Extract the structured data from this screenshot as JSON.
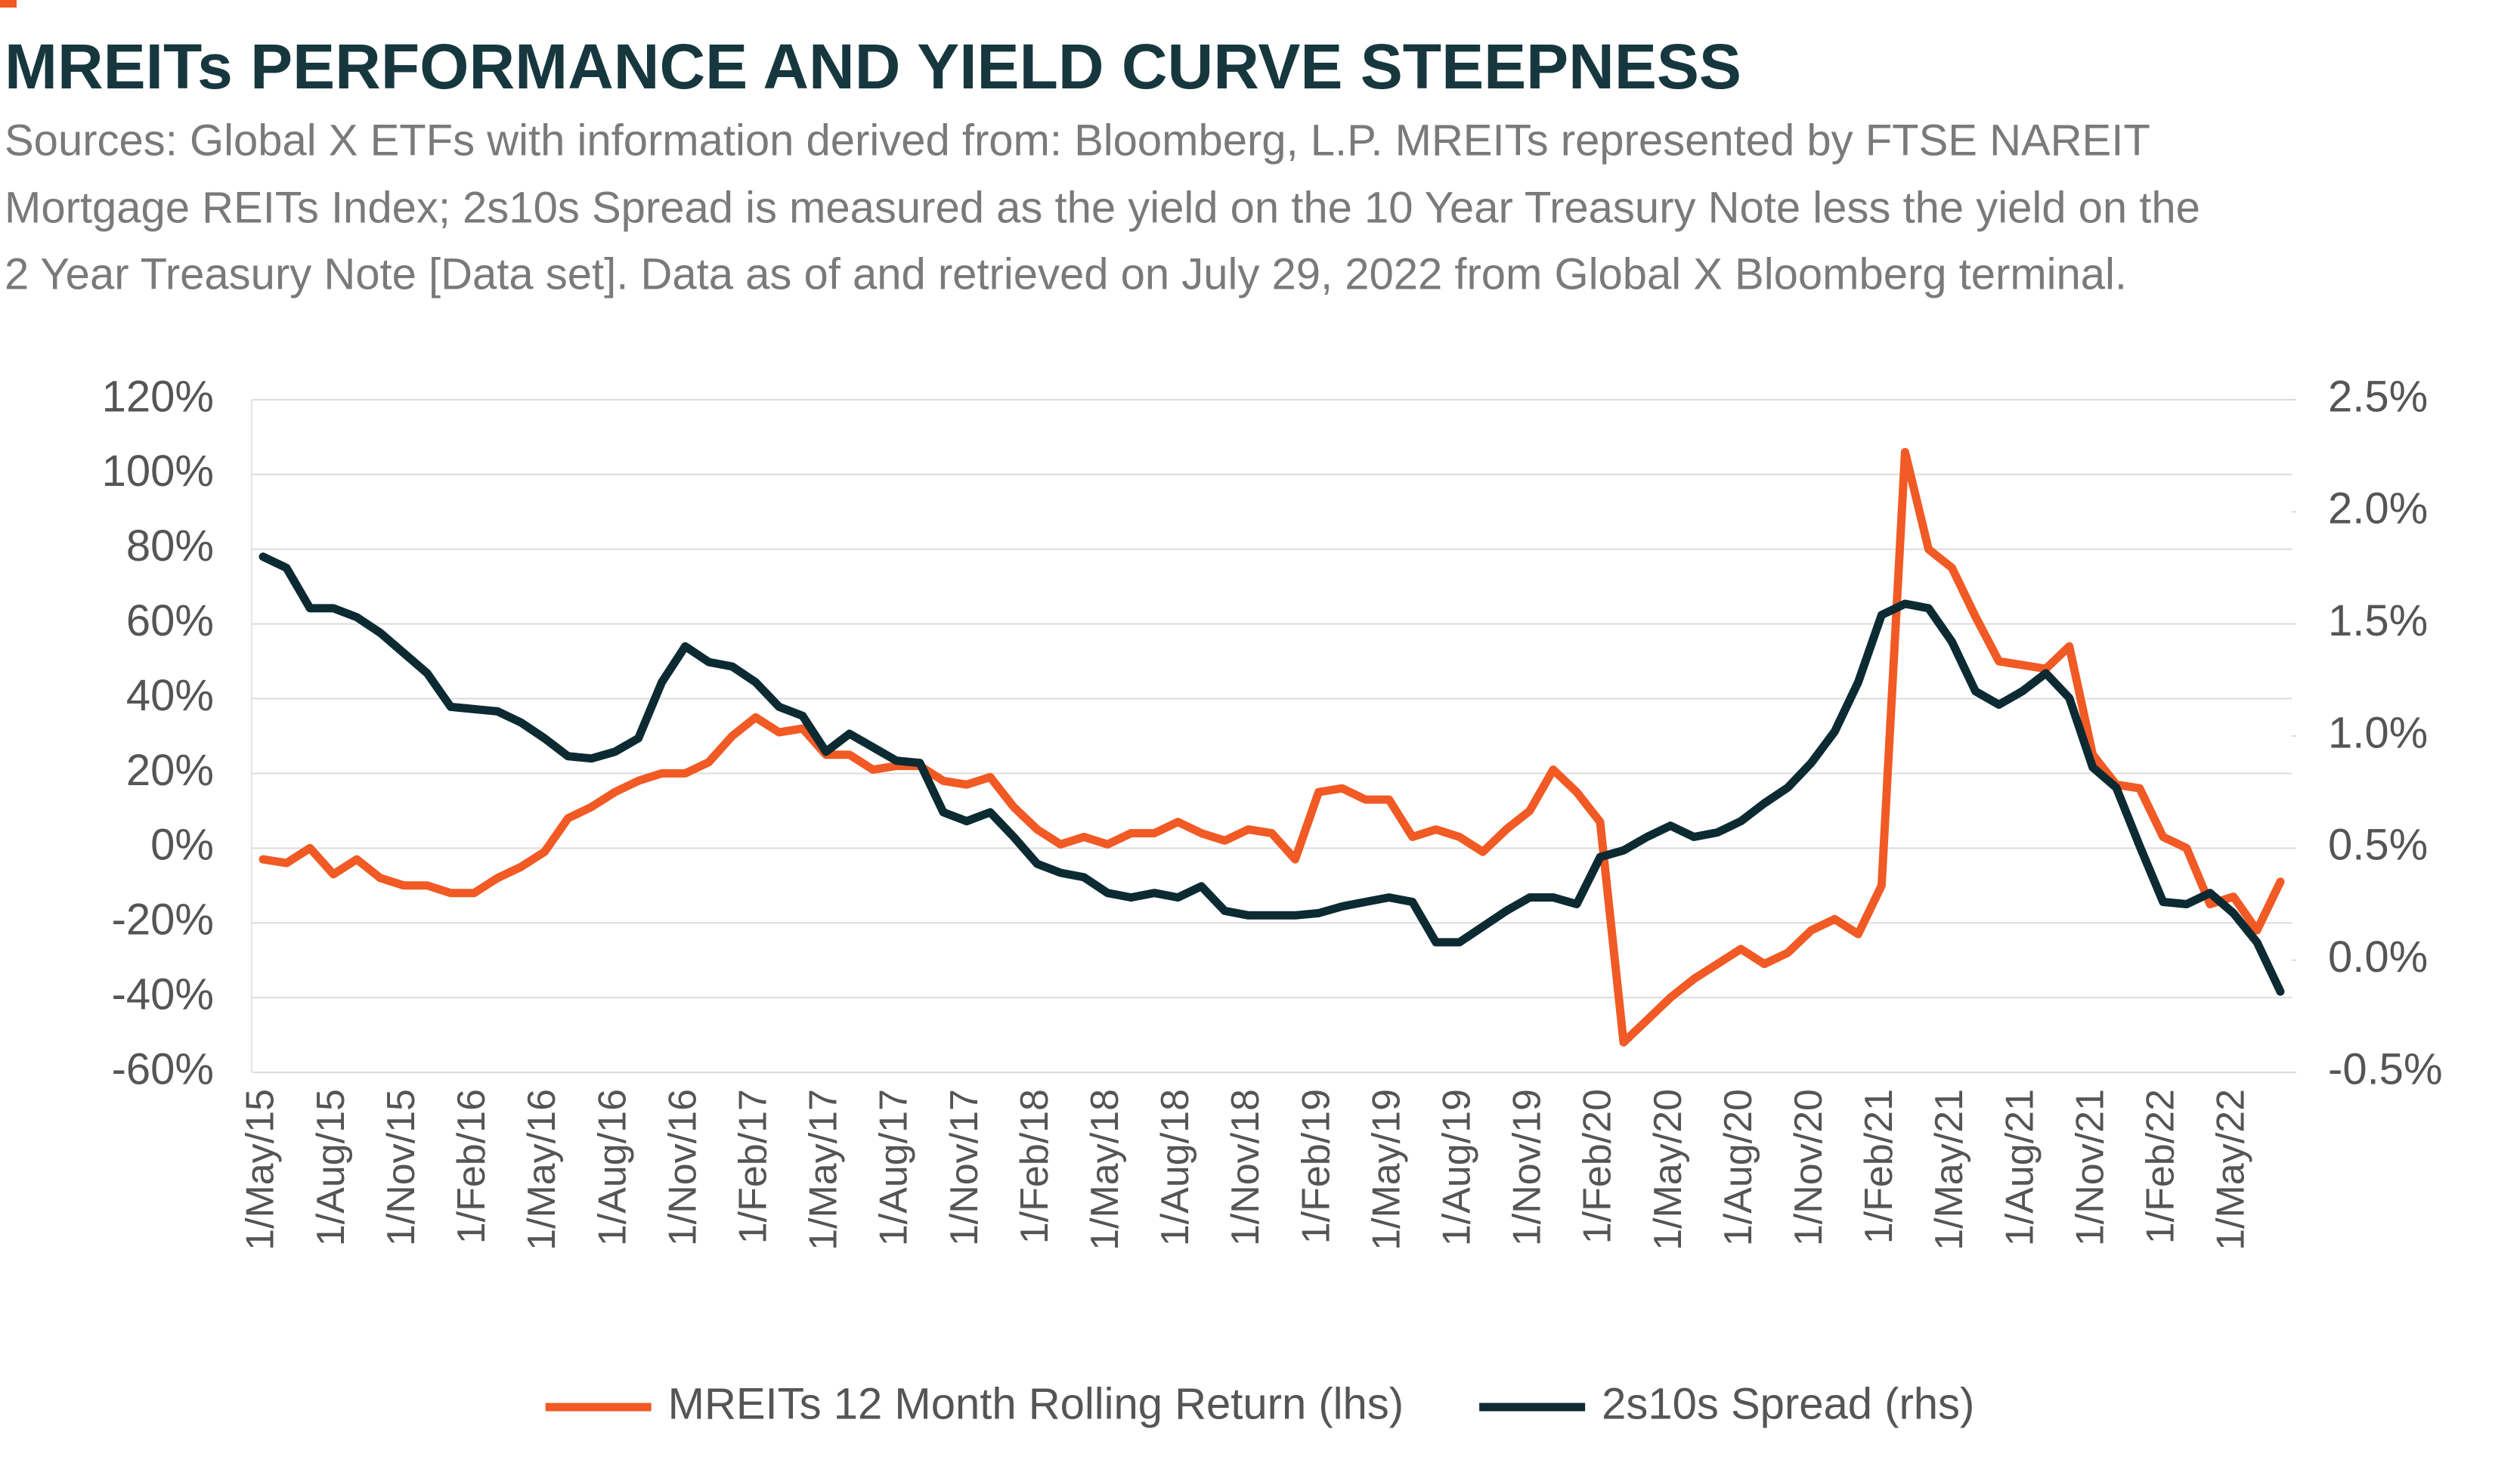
{
  "chart_data": {
    "type": "line",
    "title": "MREITs PERFORMANCE AND YIELD CURVE STEEPNESS",
    "subtitle_lines": [
      "Sources: Global X ETFs with information derived from: Bloomberg, L.P. MREITs represented by FTSE NAREIT",
      "Mortgage REITs Index; 2s10s Spread is measured as the yield on the 10 Year Treasury Note less the yield on the",
      "2 Year Treasury Note [Data set]. Data as of and retrieved on July 29, 2022 from Global X Bloomberg terminal."
    ],
    "categories": [
      "1/May/15",
      null,
      null,
      "1/Aug/15",
      null,
      null,
      "1/Nov/15",
      null,
      null,
      "1/Feb/16",
      null,
      null,
      "1/May/16",
      null,
      null,
      "1/Aug/16",
      null,
      null,
      "1/Nov/16",
      null,
      null,
      "1/Feb/17",
      null,
      null,
      "1/May/17",
      null,
      null,
      "1/Aug/17",
      null,
      null,
      "1/Nov/17",
      null,
      null,
      "1/Feb/18",
      null,
      null,
      "1/May/18",
      null,
      null,
      "1/Aug/18",
      null,
      null,
      "1/Nov/18",
      null,
      null,
      "1/Feb/19",
      null,
      null,
      "1/May/19",
      null,
      null,
      "1/Aug/19",
      null,
      null,
      "1/Nov/19",
      null,
      null,
      "1/Feb/20",
      null,
      null,
      "1/May/20",
      null,
      null,
      "1/Aug/20",
      null,
      null,
      "1/Nov/20",
      null,
      null,
      "1/Feb/21",
      null,
      null,
      "1/May/21",
      null,
      null,
      "1/Aug/21",
      null,
      null,
      "1/Nov/21",
      null,
      null,
      "1/Feb/22",
      null,
      null,
      "1/May/22",
      null,
      null
    ],
    "series": [
      {
        "name": "MREITs 12 Month Rolling Return (lhs)",
        "color": "#f15a24",
        "axis": "y",
        "values": [
          -3,
          -4,
          0,
          -7,
          -3,
          -8,
          -10,
          -10,
          -12,
          -12,
          -8,
          -5,
          -1,
          8,
          11,
          15,
          18,
          20,
          20,
          23,
          30,
          35,
          31,
          32,
          25,
          25,
          21,
          22,
          22,
          18,
          17,
          19,
          11,
          5,
          1,
          3,
          1,
          4,
          4,
          7,
          4,
          2,
          5,
          4,
          -3,
          15,
          16,
          13,
          13,
          3,
          5,
          3,
          -1,
          5,
          10,
          21,
          15,
          7,
          -52,
          -46,
          -40,
          -35,
          -31,
          -27,
          -31,
          -28,
          -22,
          -19,
          -23,
          -10,
          106,
          80,
          75,
          62,
          50,
          49,
          48,
          54,
          25,
          17,
          16,
          3,
          0,
          -15,
          -13,
          -22,
          -9
        ]
      },
      {
        "name": "2s10s Spread (rhs)",
        "color": "#0c2a32",
        "axis": "y2",
        "values": [
          1.8,
          1.75,
          1.57,
          1.57,
          1.53,
          1.46,
          1.37,
          1.28,
          1.13,
          1.12,
          1.11,
          1.06,
          0.99,
          0.91,
          0.9,
          0.93,
          0.99,
          1.24,
          1.4,
          1.33,
          1.31,
          1.24,
          1.13,
          1.09,
          0.93,
          1.01,
          0.95,
          0.89,
          0.88,
          0.66,
          0.62,
          0.66,
          0.55,
          0.43,
          0.39,
          0.37,
          0.3,
          0.28,
          0.3,
          0.28,
          0.33,
          0.22,
          0.2,
          0.2,
          0.2,
          0.21,
          0.24,
          0.26,
          0.28,
          0.26,
          0.08,
          0.08,
          0.15,
          0.22,
          0.28,
          0.28,
          0.25,
          0.46,
          0.49,
          0.55,
          0.6,
          0.55,
          0.57,
          0.62,
          0.7,
          0.77,
          0.88,
          1.02,
          1.24,
          1.54,
          1.59,
          1.57,
          1.42,
          1.2,
          1.14,
          1.2,
          1.28,
          1.17,
          0.86,
          0.77,
          0.51,
          0.26,
          0.25,
          0.3,
          0.21,
          0.08,
          -0.14
        ]
      }
    ],
    "ylim": [
      -60,
      120
    ],
    "yticks": [
      {
        "value": -60,
        "label": "-60%"
      },
      {
        "value": -40,
        "label": "-40%"
      },
      {
        "value": -20,
        "label": "-20%"
      },
      {
        "value": 0,
        "label": "0%"
      },
      {
        "value": 20,
        "label": "20%"
      },
      {
        "value": 40,
        "label": "40%"
      },
      {
        "value": 60,
        "label": "60%"
      },
      {
        "value": 80,
        "label": "80%"
      },
      {
        "value": 100,
        "label": "100%"
      },
      {
        "value": 120,
        "label": "120%"
      }
    ],
    "y2lim": [
      -0.5,
      2.5
    ],
    "y2ticks": [
      {
        "value": -0.5,
        "label": "-0.5%"
      },
      {
        "value": 0,
        "label": "0.0%"
      },
      {
        "value": 0.5,
        "label": "0.5%"
      },
      {
        "value": 1,
        "label": "1.0%"
      },
      {
        "value": 1.5,
        "label": "1.5%"
      },
      {
        "value": 2,
        "label": "2.0%"
      },
      {
        "value": 2.5,
        "label": "2.5%"
      }
    ],
    "grid": true,
    "legend": "bottom"
  }
}
